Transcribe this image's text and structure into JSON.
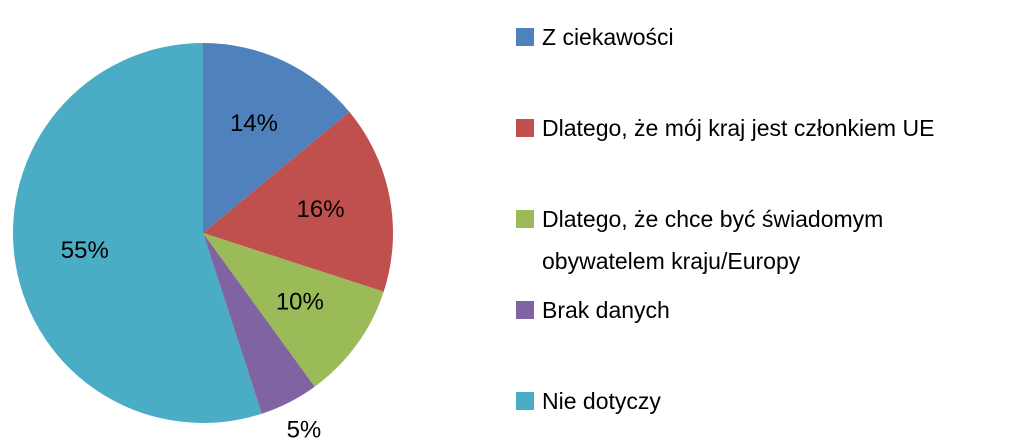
{
  "chart_data": {
    "type": "pie",
    "categories": [
      "Z ciekawości",
      "Dlatego, że mój kraj jest członkiem UE",
      "Dlatego, że chce być świadomym obywatelem kraju/Europy",
      "Brak danych",
      "Nie dotyczy"
    ],
    "values": [
      14,
      16,
      10,
      5,
      55
    ],
    "value_labels": [
      "14%",
      "16%",
      "10%",
      "5%",
      "55%"
    ],
    "colors": [
      "#4f81bd",
      "#c0504d",
      "#9bbb59",
      "#8064a2",
      "#4bacc6"
    ]
  }
}
